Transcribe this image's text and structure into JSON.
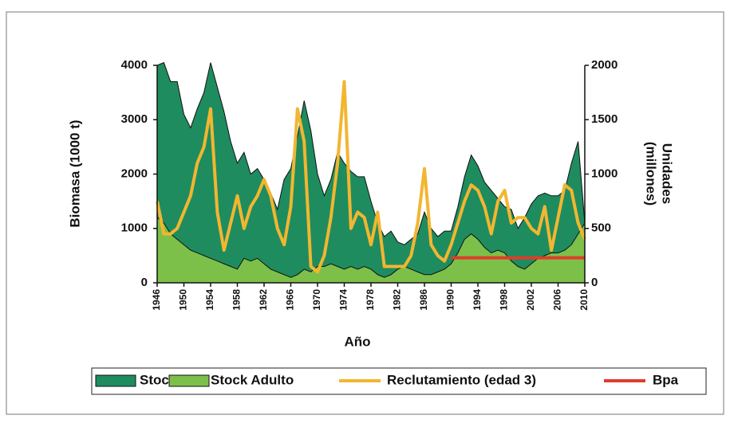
{
  "chart_data": {
    "type": "area-line",
    "x_label": "Año",
    "y_label": "Biomasa (1000 t)",
    "y2_label": [
      "Unidades",
      "(millones)"
    ],
    "x": [
      1946,
      1947,
      1948,
      1949,
      1950,
      1951,
      1952,
      1953,
      1954,
      1955,
      1956,
      1957,
      1958,
      1959,
      1960,
      1961,
      1962,
      1963,
      1964,
      1965,
      1966,
      1967,
      1968,
      1969,
      1970,
      1971,
      1972,
      1973,
      1974,
      1975,
      1976,
      1977,
      1978,
      1979,
      1980,
      1981,
      1982,
      1983,
      1984,
      1985,
      1986,
      1987,
      1988,
      1989,
      1990,
      1991,
      1992,
      1993,
      1994,
      1995,
      1996,
      1997,
      1998,
      1999,
      2000,
      2001,
      2002,
      2003,
      2004,
      2005,
      2006,
      2007,
      2008,
      2009,
      2010
    ],
    "xlim": [
      1946,
      2010
    ],
    "xticks": [
      1946,
      1950,
      1954,
      1958,
      1962,
      1966,
      1970,
      1974,
      1978,
      1982,
      1986,
      1990,
      1994,
      1998,
      2002,
      2006,
      2010
    ],
    "ylim": [
      0,
      4000
    ],
    "yticks": [
      0,
      1000,
      2000,
      3000,
      4000
    ],
    "y2lim": [
      0,
      2000
    ],
    "y2ticks": [
      0,
      500,
      1000,
      1500,
      2000
    ],
    "series": [
      {
        "name": "Stock",
        "kind": "area",
        "color": "#1e8c5f",
        "values": [
          4000,
          4050,
          3700,
          3700,
          3100,
          2850,
          3200,
          3500,
          4050,
          3600,
          3150,
          2600,
          2200,
          2400,
          2000,
          2100,
          1900,
          1650,
          1350,
          1900,
          2100,
          2700,
          3350,
          2800,
          2000,
          1600,
          1900,
          2400,
          2200,
          2050,
          1950,
          1950,
          1500,
          1100,
          850,
          950,
          750,
          700,
          800,
          900,
          1300,
          1000,
          850,
          950,
          950,
          1400,
          1950,
          2350,
          2150,
          1850,
          1700,
          1550,
          1400,
          1350,
          1000,
          1200,
          1450,
          1600,
          1650,
          1600,
          1600,
          1700,
          2200,
          2600,
          1100
        ]
      },
      {
        "name": "Stock Adulto",
        "kind": "area",
        "color": "#7cc04a",
        "values": [
          1200,
          1100,
          900,
          800,
          700,
          600,
          550,
          500,
          450,
          400,
          350,
          300,
          250,
          450,
          400,
          450,
          350,
          250,
          200,
          150,
          100,
          150,
          250,
          200,
          300,
          300,
          350,
          300,
          250,
          300,
          250,
          300,
          250,
          150,
          100,
          150,
          250,
          300,
          250,
          200,
          150,
          150,
          200,
          250,
          350,
          550,
          800,
          900,
          800,
          650,
          550,
          600,
          550,
          400,
          300,
          250,
          350,
          450,
          500,
          550,
          550,
          600,
          700,
          900,
          1100
        ]
      },
      {
        "name": "Reclutamiento (edad 3)",
        "kind": "line",
        "axis": "y2",
        "color": "#f2b630",
        "values": [
          750,
          450,
          450,
          500,
          650,
          800,
          1100,
          1250,
          1600,
          650,
          300,
          550,
          800,
          500,
          700,
          800,
          950,
          800,
          500,
          350,
          700,
          1600,
          1300,
          150,
          100,
          250,
          600,
          1100,
          1850,
          500,
          650,
          600,
          350,
          650,
          150,
          150,
          150,
          150,
          250,
          550,
          1050,
          350,
          250,
          200,
          350,
          550,
          750,
          900,
          850,
          700,
          450,
          750,
          850,
          550,
          600,
          600,
          500,
          450,
          700,
          300,
          600,
          900,
          850,
          550,
          400
        ]
      },
      {
        "name": "Bpa",
        "kind": "line",
        "color": "#e03c2a",
        "values": [
          null,
          null,
          null,
          null,
          null,
          null,
          null,
          null,
          null,
          null,
          null,
          null,
          null,
          null,
          null,
          null,
          null,
          null,
          null,
          null,
          null,
          null,
          null,
          null,
          null,
          null,
          null,
          null,
          null,
          null,
          null,
          null,
          null,
          null,
          null,
          null,
          null,
          null,
          null,
          null,
          null,
          null,
          null,
          null,
          460,
          460,
          460,
          460,
          460,
          460,
          460,
          460,
          460,
          460,
          460,
          460,
          460,
          460,
          460,
          460,
          460,
          460,
          460,
          460,
          460
        ]
      }
    ]
  }
}
